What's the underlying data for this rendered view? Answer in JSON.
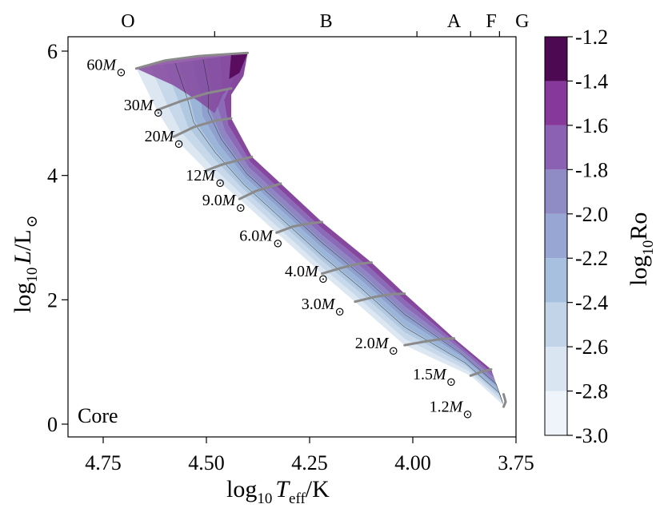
{
  "chart_data": {
    "type": "heatmap",
    "xlim": [
      4.85,
      3.75
    ],
    "ylim": [
      -0.2,
      6.3
    ],
    "x_ticks": [
      "4.75",
      "4.50",
      "4.25",
      "4.00",
      "3.75"
    ],
    "y_ticks": [
      "0",
      "2",
      "4",
      "6"
    ],
    "spectral_types": [
      {
        "label": "O",
        "x": 4.69
      },
      {
        "label": "B",
        "x": 4.21
      },
      {
        "label": "A",
        "x": 3.9
      },
      {
        "label": "F",
        "x": 3.81
      },
      {
        "label": "G",
        "x": 3.735
      }
    ],
    "spectral_boundaries": [
      4.48,
      3.99,
      3.86,
      3.79
    ],
    "xlabel": {
      "a": "log",
      "b": "10",
      "c": "T",
      "d": "eff",
      "e": "/K"
    },
    "ylabel": {
      "a": "log",
      "b": "10",
      "c": "L",
      "d": "/L",
      "e": "⊙"
    },
    "panel_label": "Core",
    "colorbar": {
      "label": "log",
      "label_sub": "10",
      "label_end": "Ro",
      "ticks": [
        "-1.2",
        "-1.4",
        "-1.6",
        "-1.8",
        "-2.0",
        "-2.2",
        "-2.4",
        "-2.6",
        "-2.8",
        "-3.0"
      ],
      "levels": [
        -3.0,
        -2.9,
        -2.8,
        -2.7,
        -2.6,
        -2.5,
        -2.4,
        -2.3,
        -2.2,
        -2.1,
        -2.0,
        -1.9,
        -1.8,
        -1.7,
        -1.6,
        -1.5,
        -1.4,
        -1.3,
        -1.2
      ],
      "colors": [
        "#edf3f9",
        "#dce7f2",
        "#c7d8ea",
        "#b1c8e1",
        "#9bb5d8",
        "#8fa0cf",
        "#8e86c3",
        "#8b6bb8",
        "#86489f",
        "#7b2184",
        "#5a0c5e",
        "#3d0741"
      ]
    },
    "tracks": [
      {
        "mass": "60",
        "label_x": 4.79,
        "label_y": 5.7,
        "points": [
          [
            4.67,
            5.72
          ],
          [
            4.6,
            5.85
          ],
          [
            4.52,
            5.92
          ],
          [
            4.45,
            5.95
          ],
          [
            4.4,
            5.97
          ]
        ]
      },
      {
        "mass": "30",
        "label_x": 4.7,
        "label_y": 5.05,
        "points": [
          [
            4.62,
            5.05
          ],
          [
            4.56,
            5.2
          ],
          [
            4.5,
            5.32
          ],
          [
            4.44,
            5.4
          ]
        ]
      },
      {
        "mass": "20",
        "label_x": 4.65,
        "label_y": 4.55,
        "points": [
          [
            4.58,
            4.62
          ],
          [
            4.53,
            4.78
          ],
          [
            4.48,
            4.88
          ],
          [
            4.44,
            4.92
          ]
        ]
      },
      {
        "mass": "12",
        "label_x": 4.55,
        "label_y": 3.92,
        "points": [
          [
            4.5,
            4.08
          ],
          [
            4.46,
            4.18
          ],
          [
            4.42,
            4.25
          ],
          [
            4.39,
            4.3
          ]
        ]
      },
      {
        "mass": "9.0",
        "label_x": 4.51,
        "label_y": 3.52,
        "points": [
          [
            4.42,
            3.62
          ],
          [
            4.38,
            3.75
          ],
          [
            4.34,
            3.83
          ],
          [
            4.32,
            3.87
          ]
        ]
      },
      {
        "mass": "6.0",
        "label_x": 4.42,
        "label_y": 2.95,
        "points": [
          [
            4.33,
            3.08
          ],
          [
            4.29,
            3.18
          ],
          [
            4.25,
            3.23
          ],
          [
            4.22,
            3.25
          ]
        ]
      },
      {
        "mass": "4.0",
        "label_x": 4.31,
        "label_y": 2.38,
        "points": [
          [
            4.22,
            2.42
          ],
          [
            4.17,
            2.52
          ],
          [
            4.13,
            2.58
          ],
          [
            4.1,
            2.6
          ]
        ]
      },
      {
        "mass": "3.0",
        "label_x": 4.27,
        "label_y": 1.85,
        "points": [
          [
            4.14,
            1.97
          ],
          [
            4.09,
            2.05
          ],
          [
            4.05,
            2.09
          ],
          [
            4.02,
            2.1
          ]
        ]
      },
      {
        "mass": "2.0",
        "label_x": 4.14,
        "label_y": 1.22,
        "points": [
          [
            4.02,
            1.27
          ],
          [
            3.97,
            1.33
          ],
          [
            3.93,
            1.37
          ],
          [
            3.9,
            1.38
          ]
        ]
      },
      {
        "mass": "1.5",
        "label_x": 4.0,
        "label_y": 0.72,
        "points": [
          [
            3.86,
            0.78
          ],
          [
            3.83,
            0.85
          ],
          [
            3.81,
            0.88
          ]
        ]
      },
      {
        "mass": "1.2",
        "label_x": 3.96,
        "label_y": 0.2,
        "points": [
          [
            3.78,
            0.48
          ],
          [
            3.775,
            0.36
          ],
          [
            3.78,
            0.28
          ]
        ]
      }
    ],
    "region": {
      "zams": [
        [
          4.67,
          5.72
        ],
        [
          4.62,
          5.05
        ],
        [
          4.58,
          4.62
        ],
        [
          4.5,
          4.08
        ],
        [
          4.42,
          3.62
        ],
        [
          4.33,
          3.08
        ],
        [
          4.22,
          2.42
        ],
        [
          4.14,
          1.97
        ],
        [
          4.02,
          1.27
        ],
        [
          3.86,
          0.78
        ],
        [
          3.78,
          0.3
        ]
      ],
      "tams": [
        [
          4.4,
          5.97
        ],
        [
          4.41,
          5.6
        ],
        [
          4.44,
          5.3
        ],
        [
          4.44,
          4.92
        ],
        [
          4.39,
          4.3
        ],
        [
          4.32,
          3.87
        ],
        [
          4.22,
          3.25
        ],
        [
          4.1,
          2.6
        ],
        [
          4.02,
          2.1
        ],
        [
          3.9,
          1.38
        ],
        [
          3.81,
          0.88
        ],
        [
          3.785,
          0.4
        ]
      ],
      "hook": [
        [
          4.4,
          5.97
        ],
        [
          4.42,
          5.6
        ],
        [
          4.46,
          5.3
        ],
        [
          4.46,
          5.0
        ]
      ]
    }
  }
}
